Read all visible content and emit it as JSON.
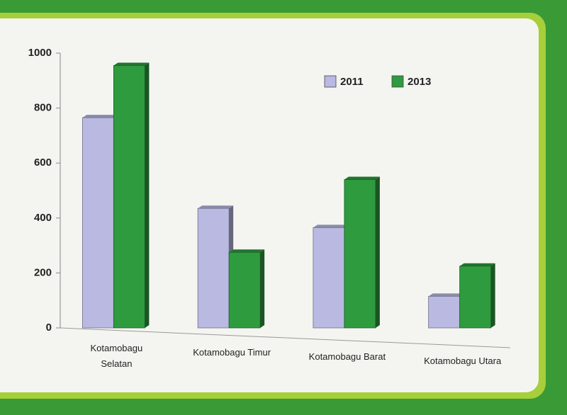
{
  "chart_data": {
    "type": "bar",
    "categories": [
      "Kotamobagu Selatan",
      "Kotamobagu Timur",
      "Kotamobagu Barat",
      "Kotamobagu Utara"
    ],
    "series": [
      {
        "name": "2011",
        "color": "#b9b9e2",
        "values": [
          765,
          435,
          365,
          115
        ]
      },
      {
        "name": "2013",
        "color": "#2f9b3f",
        "values": [
          955,
          275,
          540,
          225
        ]
      }
    ],
    "ylim": [
      0,
      1000
    ],
    "yticks": [
      0,
      200,
      400,
      600,
      800,
      1000
    ],
    "legend": "top-right"
  }
}
